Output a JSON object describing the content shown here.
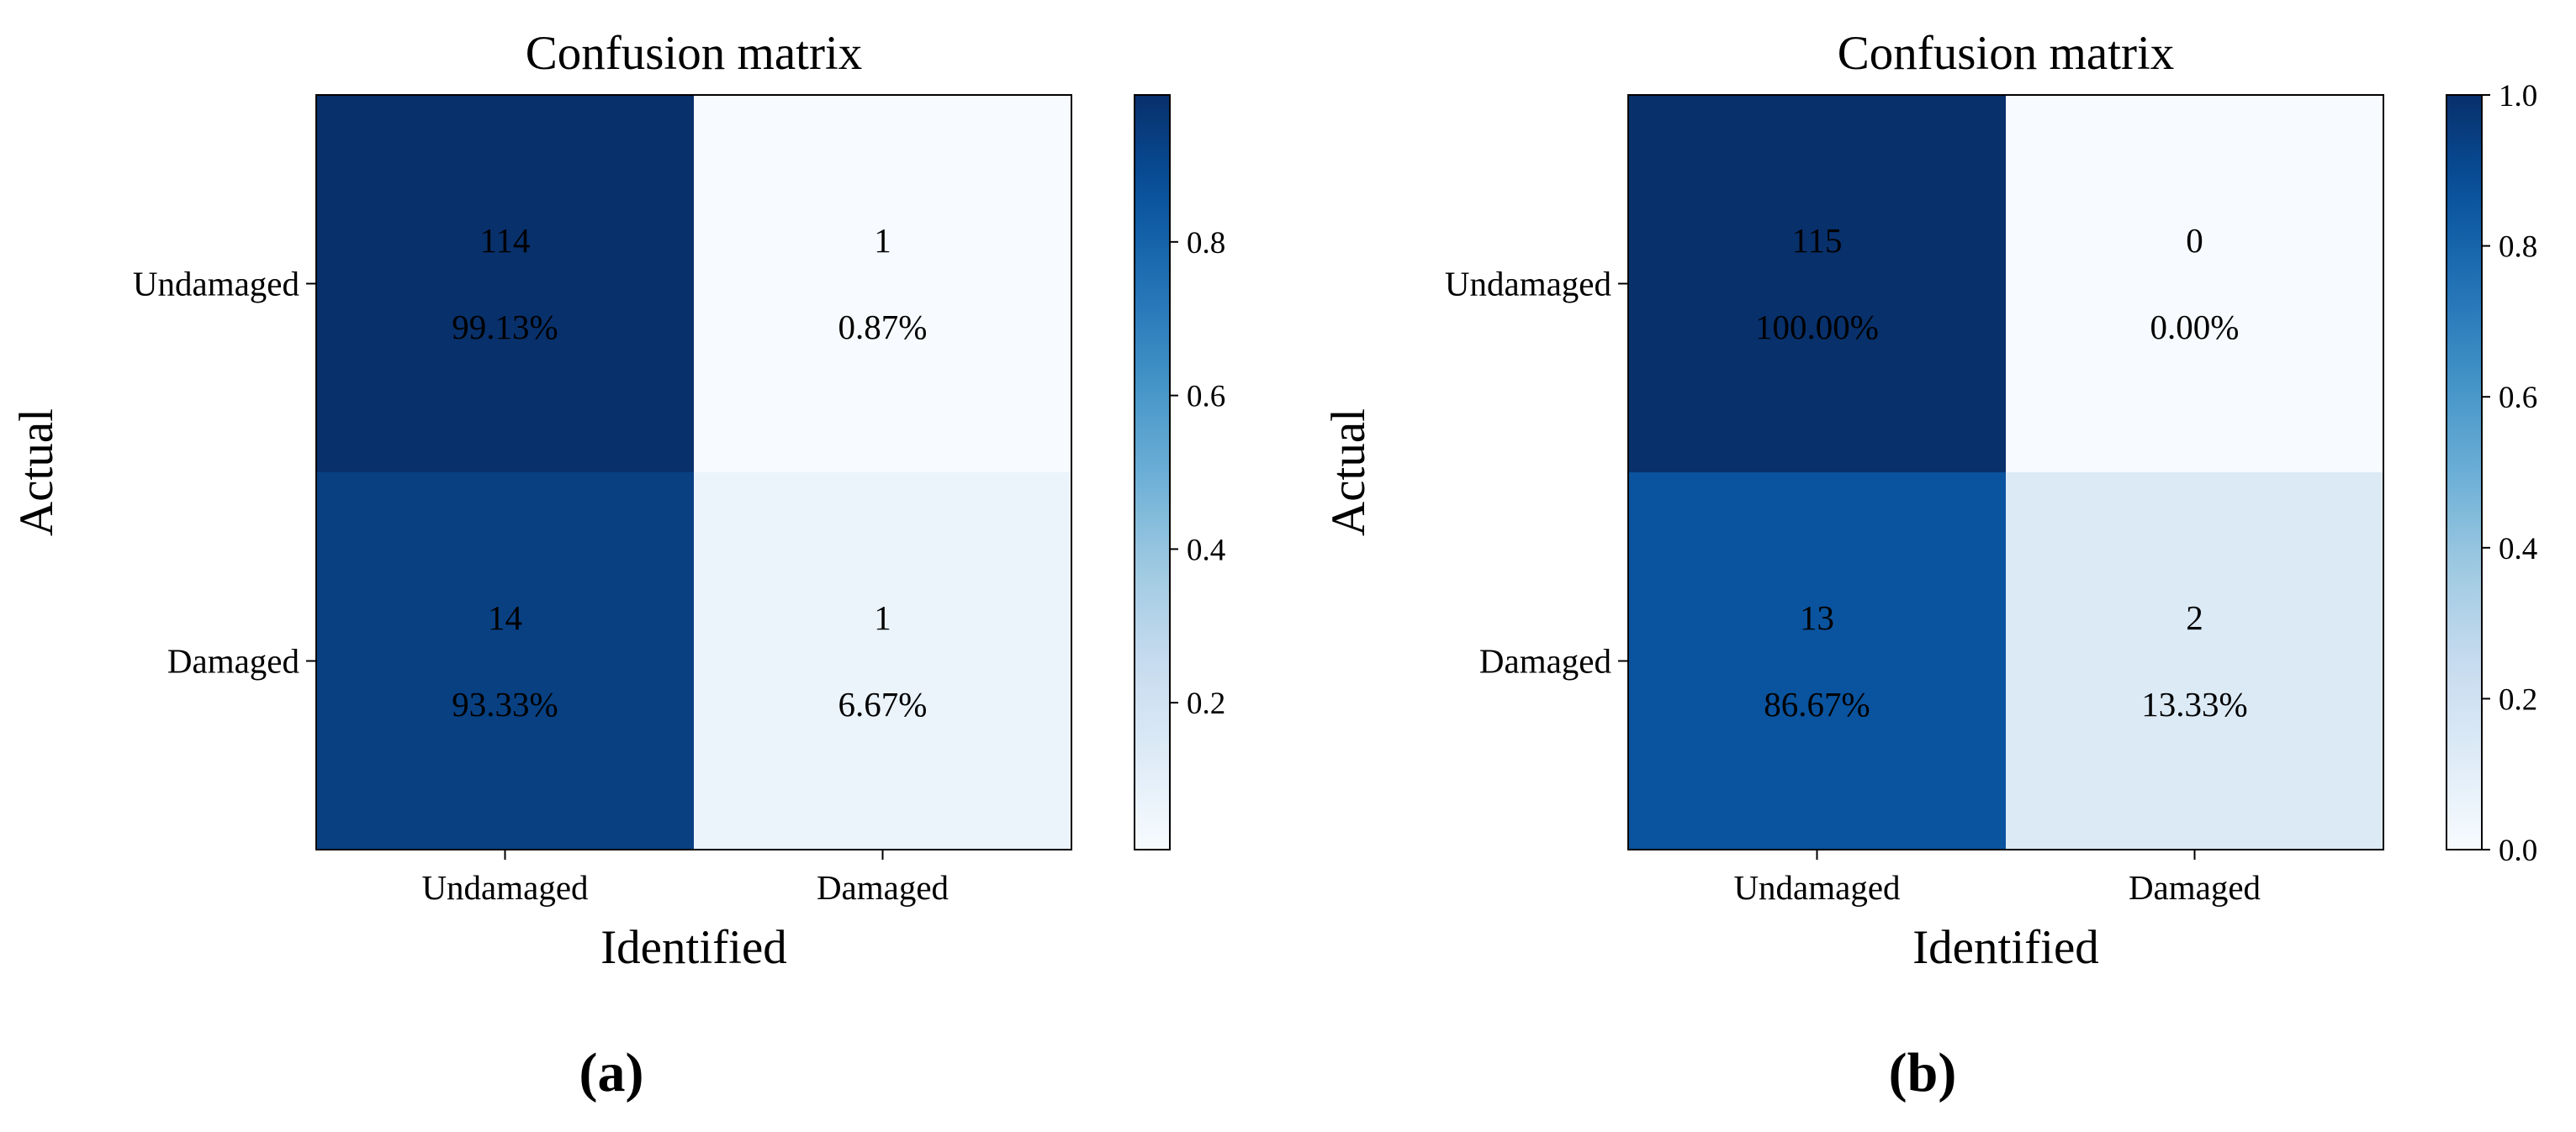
{
  "figure": {
    "panel_labels": [
      "(a)",
      "(b)"
    ]
  },
  "chart_data": [
    {
      "type": "heatmap",
      "title": "Confusion matrix",
      "xlabel": "Identified",
      "ylabel": "Actual",
      "x_categories": [
        "Undamaged",
        "Damaged"
      ],
      "y_categories": [
        "Undamaged",
        "Damaged"
      ],
      "counts": [
        [
          114,
          1
        ],
        [
          14,
          1
        ]
      ],
      "percent_labels": [
        [
          "99.13%",
          "0.87%"
        ],
        [
          "93.33%",
          "6.67%"
        ]
      ],
      "values": [
        [
          0.9913,
          0.0087
        ],
        [
          0.9333,
          0.0667
        ]
      ],
      "colorbar": {
        "colormap": "Blues",
        "range": [
          0.0087,
          0.9913
        ],
        "ticks": [
          0.2,
          0.4,
          0.6,
          0.8
        ],
        "tick_labels": [
          "0.2",
          "0.4",
          "0.6",
          "0.8"
        ]
      },
      "panel_label": "(a)"
    },
    {
      "type": "heatmap",
      "title": "Confusion matrix",
      "xlabel": "Identified",
      "ylabel": "Actual",
      "x_categories": [
        "Undamaged",
        "Damaged"
      ],
      "y_categories": [
        "Undamaged",
        "Damaged"
      ],
      "counts": [
        [
          115,
          0
        ],
        [
          13,
          2
        ]
      ],
      "percent_labels": [
        [
          "100.00%",
          "0.00%"
        ],
        [
          "86.67%",
          "13.33%"
        ]
      ],
      "values": [
        [
          1.0,
          0.0
        ],
        [
          0.8667,
          0.1333
        ]
      ],
      "colorbar": {
        "colormap": "Blues",
        "range": [
          0.0,
          1.0
        ],
        "ticks": [
          0.0,
          0.2,
          0.4,
          0.6,
          0.8,
          1.0
        ],
        "tick_labels": [
          "0.0",
          "0.2",
          "0.4",
          "0.6",
          "0.8",
          "1.0"
        ]
      },
      "panel_label": "(b)"
    }
  ]
}
